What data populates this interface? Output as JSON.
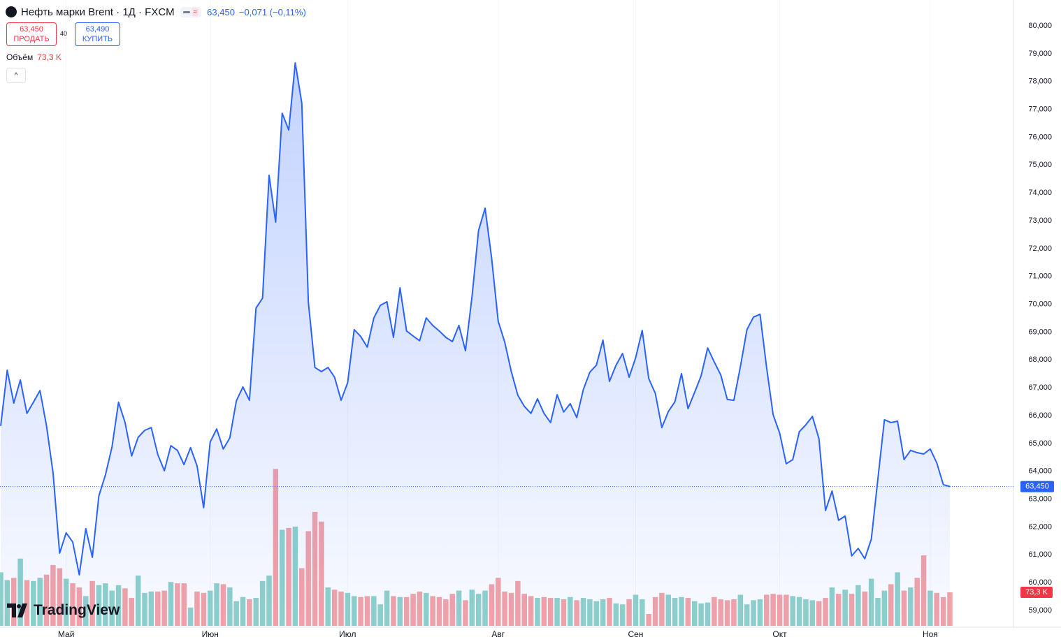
{
  "header": {
    "symbol": "Нефть марки Brent · 1Д · FXCM",
    "last": "63,450",
    "change": "−0,071 (−0,11%)",
    "sell_price": "63,450",
    "sell_label": "ПРОДАТЬ",
    "spread": "40",
    "buy_price": "63,490",
    "buy_label": "КУПИТЬ",
    "brand": "TradingView"
  },
  "chart_data": {
    "type": "area",
    "title": "Нефть марки Brent · 1Д · FXCM",
    "categories": [
      null,
      null,
      null,
      null,
      null,
      null,
      null,
      null,
      null,
      null,
      "Май",
      null,
      null,
      null,
      null,
      null,
      null,
      null,
      null,
      null,
      null,
      null,
      null,
      null,
      null,
      null,
      null,
      null,
      null,
      null,
      null,
      null,
      "Июн",
      null,
      null,
      null,
      null,
      null,
      null,
      null,
      null,
      null,
      null,
      null,
      null,
      null,
      null,
      null,
      null,
      null,
      null,
      null,
      null,
      "Июл",
      null,
      null,
      null,
      null,
      null,
      null,
      null,
      null,
      null,
      null,
      null,
      null,
      null,
      null,
      null,
      null,
      null,
      null,
      null,
      null,
      null,
      null,
      "Авг",
      null,
      null,
      null,
      null,
      null,
      null,
      null,
      null,
      null,
      null,
      null,
      null,
      null,
      null,
      null,
      null,
      null,
      null,
      null,
      null,
      "Сен",
      null,
      null,
      null,
      null,
      null,
      null,
      null,
      null,
      null,
      null,
      null,
      null,
      null,
      null,
      null,
      null,
      null,
      null,
      null,
      null,
      null,
      "Окт",
      null,
      null,
      null,
      null,
      null,
      null,
      null,
      null,
      null,
      null,
      null,
      null,
      null,
      null,
      null,
      null,
      null,
      null,
      null,
      null,
      null,
      null,
      "Ноя",
      null,
      null,
      null
    ],
    "series": [
      {
        "name": "Нефть марки Brent",
        "color": "#2962ff",
        "values": [
          65.63,
          67.63,
          66.45,
          67.28,
          66.08,
          66.48,
          66.9,
          65.63,
          63.94,
          61.06,
          61.79,
          61.46,
          60.28,
          61.94,
          60.91,
          63.12,
          63.87,
          64.87,
          66.48,
          65.75,
          64.55,
          65.22,
          65.47,
          65.57,
          64.6,
          64.02,
          64.92,
          64.75,
          64.24,
          64.85,
          64.19,
          62.69,
          65.05,
          65.52,
          64.8,
          65.2,
          66.53,
          67.03,
          66.55,
          69.86,
          70.22,
          74.63,
          72.95,
          76.86,
          76.26,
          78.67,
          77.22,
          70.07,
          67.73,
          67.58,
          67.73,
          67.38,
          66.55,
          67.18,
          69.09,
          68.84,
          68.46,
          69.51,
          69.96,
          70.09,
          68.81,
          70.59,
          69.04,
          68.86,
          68.69,
          69.51,
          69.24,
          69.04,
          68.81,
          68.66,
          69.24,
          68.33,
          70.27,
          72.65,
          73.45,
          71.65,
          69.39,
          68.64,
          67.58,
          66.73,
          66.33,
          66.08,
          66.6,
          66.08,
          65.75,
          66.75,
          66.13,
          66.43,
          65.93,
          66.93,
          67.56,
          67.81,
          68.71,
          67.23,
          67.81,
          68.23,
          67.38,
          68.08,
          69.06,
          67.33,
          66.8,
          65.57,
          66.15,
          66.5,
          67.51,
          66.25,
          66.83,
          67.43,
          68.43,
          67.93,
          67.46,
          66.58,
          66.55,
          67.76,
          69.09,
          69.54,
          69.64,
          67.73,
          66.03,
          65.37,
          64.27,
          64.42,
          65.42,
          65.67,
          65.97,
          65.17,
          62.59,
          63.29,
          62.24,
          62.39,
          60.96,
          61.23,
          60.86,
          61.56,
          63.72,
          65.85,
          65.75,
          65.8,
          64.42,
          64.75,
          64.67,
          64.62,
          64.8,
          64.3,
          63.52,
          63.45
        ]
      }
    ],
    "last_price": {
      "value": 63.45,
      "label": "63,450"
    },
    "volume": {
      "name": "Объём",
      "up_color": "#8fd2ca",
      "down_color": "#f5a3a6",
      "last_label": "73,3 K",
      "values": [
        117,
        100,
        105,
        147,
        100,
        98,
        105,
        112,
        133,
        126,
        103,
        93,
        84,
        65,
        98,
        89,
        93,
        77,
        89,
        82,
        61,
        110,
        72,
        75,
        75,
        77,
        96,
        93,
        93,
        40,
        75,
        72,
        77,
        93,
        91,
        84,
        54,
        63,
        58,
        61,
        98,
        110,
        343,
        210,
        214,
        217,
        126,
        207,
        249,
        228,
        84,
        79,
        75,
        72,
        65,
        63,
        65,
        65,
        47,
        77,
        65,
        63,
        63,
        70,
        75,
        72,
        65,
        63,
        58,
        70,
        77,
        56,
        79,
        70,
        77,
        91,
        105,
        75,
        72,
        98,
        70,
        65,
        61,
        63,
        61,
        61,
        58,
        63,
        56,
        61,
        58,
        54,
        58,
        61,
        49,
        47,
        58,
        68,
        58,
        26,
        63,
        72,
        68,
        61,
        63,
        61,
        54,
        49,
        51,
        63,
        58,
        56,
        58,
        68,
        47,
        56,
        58,
        68,
        70,
        68,
        68,
        65,
        63,
        58,
        56,
        54,
        61,
        84,
        70,
        79,
        70,
        89,
        75,
        103,
        61,
        77,
        91,
        117,
        77,
        84,
        105,
        154,
        77,
        72,
        63,
        73.3
      ]
    },
    "ylim": [
      59,
      80
    ],
    "yticks": [
      {
        "value": 59,
        "label": "59,000"
      },
      {
        "value": 60,
        "label": "60,000"
      },
      {
        "value": 61,
        "label": "61,000"
      },
      {
        "value": 62,
        "label": "62,000"
      },
      {
        "value": 63,
        "label": "63,000"
      },
      {
        "value": 64,
        "label": "64,000"
      },
      {
        "value": 65,
        "label": "65,000"
      },
      {
        "value": 66,
        "label": "66,000"
      },
      {
        "value": 67,
        "label": "67,000"
      },
      {
        "value": 68,
        "label": "68,000"
      },
      {
        "value": 69,
        "label": "69,000"
      },
      {
        "value": 70,
        "label": "70,000"
      },
      {
        "value": 71,
        "label": "71,000"
      },
      {
        "value": 72,
        "label": "72,000"
      },
      {
        "value": 73,
        "label": "73,000"
      },
      {
        "value": 74,
        "label": "74,000"
      },
      {
        "value": 75,
        "label": "75,000"
      },
      {
        "value": 76,
        "label": "76,000"
      },
      {
        "value": 77,
        "label": "77,000"
      },
      {
        "value": 78,
        "label": "78,000"
      },
      {
        "value": 79,
        "label": "79,000"
      },
      {
        "value": 80,
        "label": "80,000"
      }
    ],
    "grid": true
  }
}
